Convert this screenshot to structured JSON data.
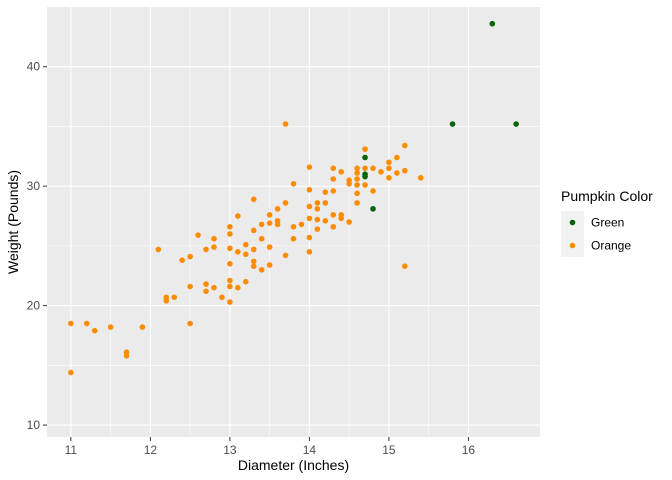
{
  "chart_data": {
    "type": "scatter",
    "title": "",
    "xlabel": "Diameter (Inches)",
    "ylabel": "Weight (Pounds)",
    "xlim": [
      10.7,
      16.9
    ],
    "ylim": [
      9,
      45
    ],
    "x_ticks": [
      11,
      12,
      13,
      14,
      15,
      16
    ],
    "y_ticks": [
      10,
      20,
      30,
      40
    ],
    "x_tick_labels": [
      "11",
      "12",
      "13",
      "14",
      "15",
      "16"
    ],
    "y_tick_labels": [
      "10",
      "20",
      "30",
      "40"
    ],
    "grid": true,
    "panel_background": "#ebebeb",
    "grid_color": "#ffffff",
    "legend": {
      "title": "Pumpkin Color",
      "position": "right",
      "entries": [
        "Green",
        "Orange"
      ]
    },
    "series": [
      {
        "name": "Green",
        "color": "#006400",
        "points": [
          [
            14.7,
            32.4
          ],
          [
            14.7,
            31.0
          ],
          [
            14.7,
            30.8
          ],
          [
            14.8,
            28.1
          ],
          [
            15.8,
            35.2
          ],
          [
            16.3,
            43.6
          ],
          [
            16.6,
            35.2
          ]
        ]
      },
      {
        "name": "Orange",
        "color": "#ff8c00",
        "points": [
          [
            11.0,
            18.5
          ],
          [
            11.0,
            14.4
          ],
          [
            11.2,
            18.5
          ],
          [
            11.3,
            17.9
          ],
          [
            11.5,
            18.2
          ],
          [
            11.7,
            16.1
          ],
          [
            11.7,
            15.8
          ],
          [
            11.9,
            18.2
          ],
          [
            12.1,
            24.7
          ],
          [
            12.2,
            20.7
          ],
          [
            12.2,
            20.4
          ],
          [
            12.3,
            20.7
          ],
          [
            12.4,
            23.8
          ],
          [
            12.5,
            24.1
          ],
          [
            12.5,
            21.6
          ],
          [
            12.5,
            18.5
          ],
          [
            12.6,
            25.9
          ],
          [
            12.7,
            24.7
          ],
          [
            12.7,
            21.8
          ],
          [
            12.7,
            21.2
          ],
          [
            12.8,
            25.6
          ],
          [
            12.8,
            24.9
          ],
          [
            12.8,
            21.5
          ],
          [
            12.9,
            20.7
          ],
          [
            13.0,
            26.6
          ],
          [
            13.0,
            26.0
          ],
          [
            13.0,
            24.8
          ],
          [
            13.0,
            23.5
          ],
          [
            13.0,
            22.1
          ],
          [
            13.0,
            21.6
          ],
          [
            13.0,
            20.3
          ],
          [
            13.1,
            27.5
          ],
          [
            13.1,
            24.5
          ],
          [
            13.1,
            21.5
          ],
          [
            13.2,
            25.1
          ],
          [
            13.2,
            24.3
          ],
          [
            13.2,
            22.0
          ],
          [
            13.3,
            28.9
          ],
          [
            13.3,
            26.3
          ],
          [
            13.3,
            24.7
          ],
          [
            13.3,
            23.7
          ],
          [
            13.3,
            23.3
          ],
          [
            13.4,
            26.8
          ],
          [
            13.4,
            25.6
          ],
          [
            13.4,
            23.0
          ],
          [
            13.5,
            27.6
          ],
          [
            13.5,
            26.9
          ],
          [
            13.5,
            24.9
          ],
          [
            13.5,
            23.4
          ],
          [
            13.6,
            28.1
          ],
          [
            13.6,
            27.1
          ],
          [
            13.6,
            26.8
          ],
          [
            13.7,
            35.2
          ],
          [
            13.7,
            28.6
          ],
          [
            13.7,
            24.2
          ],
          [
            13.8,
            30.2
          ],
          [
            13.8,
            26.6
          ],
          [
            13.8,
            25.6
          ],
          [
            13.9,
            26.8
          ],
          [
            14.0,
            31.6
          ],
          [
            14.0,
            29.7
          ],
          [
            14.0,
            28.3
          ],
          [
            14.0,
            27.3
          ],
          [
            14.0,
            25.7
          ],
          [
            14.0,
            24.5
          ],
          [
            14.1,
            28.6
          ],
          [
            14.1,
            28.1
          ],
          [
            14.1,
            27.2
          ],
          [
            14.1,
            26.4
          ],
          [
            14.2,
            29.5
          ],
          [
            14.2,
            28.6
          ],
          [
            14.2,
            27.1
          ],
          [
            14.3,
            31.5
          ],
          [
            14.3,
            30.6
          ],
          [
            14.3,
            29.6
          ],
          [
            14.3,
            27.6
          ],
          [
            14.3,
            26.6
          ],
          [
            14.4,
            31.2
          ],
          [
            14.4,
            27.6
          ],
          [
            14.4,
            27.3
          ],
          [
            14.5,
            30.5
          ],
          [
            14.5,
            30.2
          ],
          [
            14.5,
            27.0
          ],
          [
            14.6,
            31.5
          ],
          [
            14.6,
            31.1
          ],
          [
            14.6,
            30.6
          ],
          [
            14.6,
            30.1
          ],
          [
            14.6,
            29.4
          ],
          [
            14.6,
            28.6
          ],
          [
            14.7,
            33.1
          ],
          [
            14.7,
            31.5
          ],
          [
            14.7,
            30.1
          ],
          [
            14.8,
            31.5
          ],
          [
            14.8,
            29.6
          ],
          [
            14.9,
            31.2
          ],
          [
            15.0,
            31.5
          ],
          [
            15.0,
            30.7
          ],
          [
            15.0,
            32.0
          ],
          [
            15.1,
            32.4
          ],
          [
            15.1,
            31.1
          ],
          [
            15.2,
            33.4
          ],
          [
            15.2,
            31.3
          ],
          [
            15.2,
            23.3
          ],
          [
            15.4,
            30.7
          ]
        ]
      }
    ]
  }
}
